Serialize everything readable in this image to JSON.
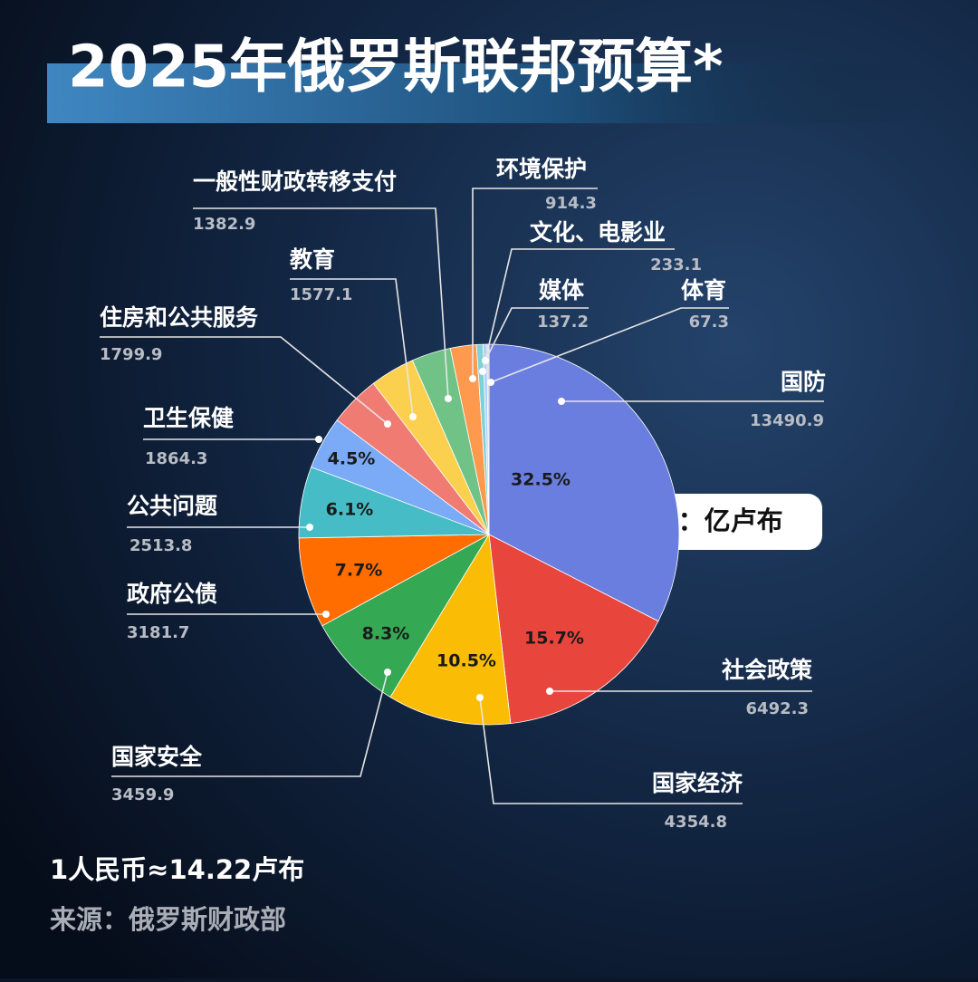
{
  "chart_data": {
    "type": "pie",
    "title": "2025年俄罗斯联邦预算*",
    "unit_note": "*单位：亿卢布",
    "exchange_note": "1人民币≈14.22卢布",
    "source": "来源：俄罗斯财政部",
    "categories": [
      "国防",
      "社会政策",
      "国家经济",
      "国家安全",
      "政府公债",
      "公共问题",
      "卫生保健",
      "住房和公共服务",
      "教育",
      "一般性财政转移支付",
      "环境保护",
      "文化、电影业",
      "媒体",
      "体育"
    ],
    "values": [
      13490.9,
      6492.3,
      4354.8,
      3459.9,
      3181.7,
      2513.8,
      1864.3,
      1799.9,
      1577.1,
      1382.9,
      914.3,
      233.1,
      137.2,
      67.3
    ],
    "value_labels": [
      "32.5%",
      "15.7%",
      "10.5%",
      "8.3%",
      "7.7%",
      "6.1%",
      "4.5%",
      null,
      null,
      null,
      null,
      null,
      null,
      null
    ],
    "colors": [
      "#6a7ee0",
      "#e8453c",
      "#fbbc05",
      "#34a853",
      "#ff6d01",
      "#46bdc6",
      "#7baaf7",
      "#f07b72",
      "#fcd04f",
      "#71c287",
      "#ff994d",
      "#7ed1d7",
      "#b3cefb",
      "#c8c8c8"
    ]
  }
}
